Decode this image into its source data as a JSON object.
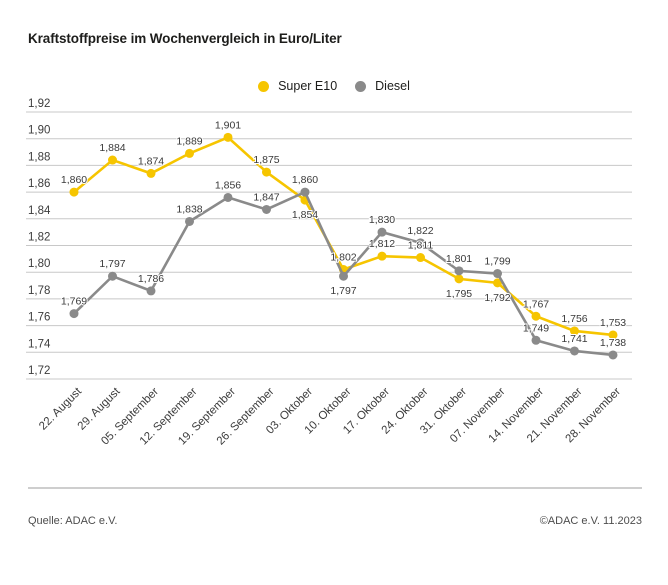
{
  "title": "Kraftstoffpreise im Wochenvergleich in Euro/Liter",
  "legend": {
    "items": [
      {
        "label": "Super E10",
        "color": "#F6C500"
      },
      {
        "label": "Diesel",
        "color": "#8A8A8A"
      }
    ]
  },
  "footer": {
    "source": "Quelle: ADAC e.V.",
    "copyright": "©ADAC e.V. 11.2023"
  },
  "chart_data": {
    "type": "line",
    "title": "Kraftstoffpreise im Wochenvergleich in Euro/Liter",
    "unit": "Euro/Liter",
    "categories": [
      "22. August",
      "29. August",
      "05. September",
      "12. September",
      "19. September",
      "26. September",
      "03. Oktober",
      "10. Oktober",
      "17. Oktober",
      "24. Oktober",
      "31. Oktober",
      "07. November",
      "14. November",
      "21. November",
      "28. November"
    ],
    "series": [
      {
        "name": "Super E10",
        "color": "#F6C500",
        "values": [
          1.86,
          1.884,
          1.874,
          1.889,
          1.901,
          1.875,
          1.854,
          1.802,
          1.812,
          1.811,
          1.795,
          1.792,
          1.767,
          1.756,
          1.753
        ],
        "label_positions": [
          "above",
          "above",
          "above",
          "above",
          "above",
          "above",
          "below",
          "above",
          "above",
          "above",
          "below",
          "below",
          "above",
          "above",
          "above"
        ]
      },
      {
        "name": "Diesel",
        "color": "#8A8A8A",
        "values": [
          1.769,
          1.797,
          1.786,
          1.838,
          1.856,
          1.847,
          1.86,
          1.797,
          1.83,
          1.822,
          1.801,
          1.799,
          1.749,
          1.741,
          1.738
        ],
        "label_positions": [
          "above",
          "above",
          "above",
          "above",
          "above",
          "above",
          "above",
          "below",
          "above",
          "above",
          "above",
          "above",
          "above",
          "above",
          "above"
        ]
      }
    ],
    "ylim": [
      1.72,
      1.92
    ],
    "ytick_step": 0.02,
    "yticks": [
      "1,92",
      "1,90",
      "1,88",
      "1,86",
      "1,84",
      "1,82",
      "1,80",
      "1,78",
      "1,76",
      "1,74",
      "1,72"
    ],
    "grid": true,
    "legend_position": "top-center",
    "decimal_separator": ",",
    "value_decimals": 3,
    "tick_decimals": 2,
    "grid_color": "#c8c8c8",
    "text_color": "#3c3c3c"
  }
}
